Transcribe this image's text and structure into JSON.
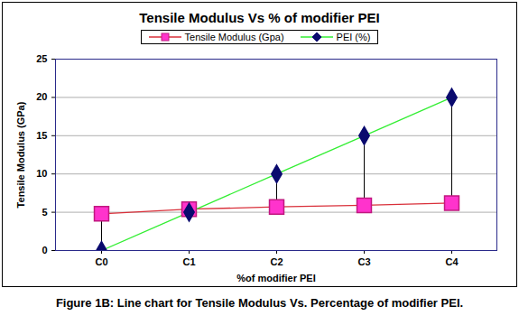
{
  "chart_data": {
    "type": "line",
    "title": "Tensile Modulus Vs % of modifier PEI",
    "x_label": "%of modifier PEI",
    "y_label": "Tensile Modulus (GPa)",
    "caption": "Figure 1B: Line chart for Tensile Modulus Vs. Percentage of modifier PEI.",
    "categories": [
      "C0",
      "C1",
      "C2",
      "C3",
      "C4"
    ],
    "series": [
      {
        "name": "Tensile Modulus (Gpa)",
        "color": "#d9303a",
        "marker": "square",
        "values": [
          4.8,
          5.4,
          5.7,
          5.9,
          6.2
        ]
      },
      {
        "name": "PEI (%)",
        "color": "#33ee33",
        "marker": "diamond",
        "values": [
          0,
          5,
          10,
          15,
          20
        ]
      }
    ],
    "ylim": [
      0,
      25
    ],
    "yticks": [
      0,
      5,
      10,
      15,
      20,
      25
    ],
    "grid": true,
    "legend": "top"
  }
}
